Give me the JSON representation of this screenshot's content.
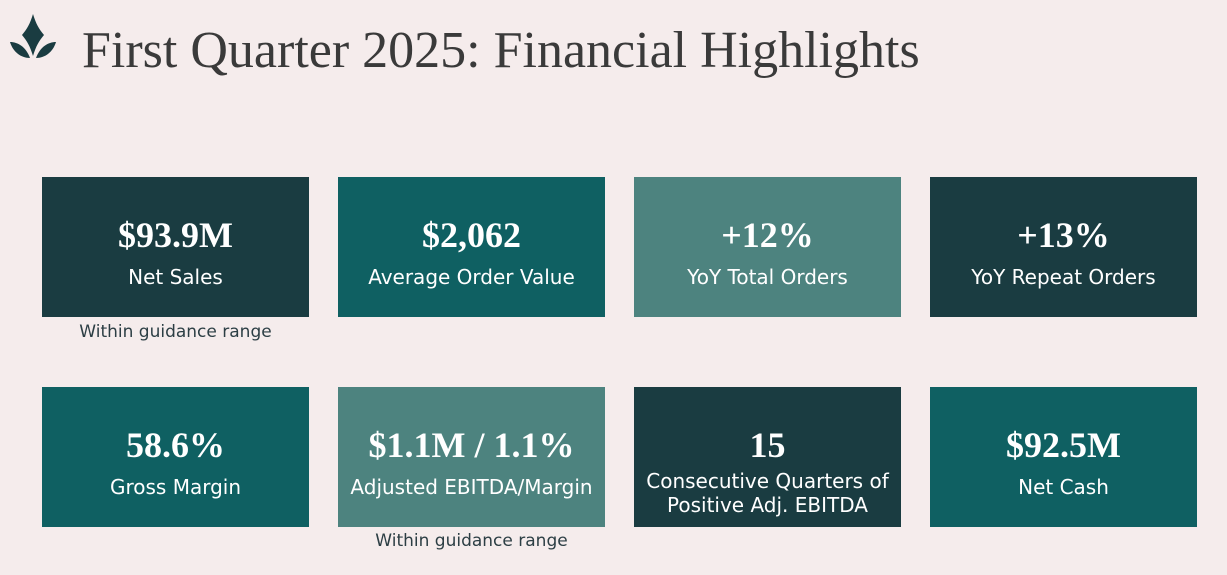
{
  "header": {
    "logo_icon": "lotus-flower-icon",
    "title": "First Quarter 2025: Financial Highlights"
  },
  "colors": {
    "background": "#f5ecec",
    "dark_teal": "#1a3c41",
    "teal": "#0f6062",
    "light_teal": "#4d837f"
  },
  "metrics": [
    {
      "value": "$93.9M",
      "label": "Net Sales",
      "note": "Within guidance range",
      "color": "#1a3c41"
    },
    {
      "value": "$2,062",
      "label": "Average Order Value",
      "color": "#0f6062"
    },
    {
      "value": "+12%",
      "label": "YoY Total Orders",
      "color": "#4d837f"
    },
    {
      "value": "+13%",
      "label": "YoY Repeat Orders",
      "color": "#1a3c41"
    },
    {
      "value": "58.6%",
      "label": "Gross Margin",
      "color": "#0f6062"
    },
    {
      "value": "$1.1M / 1.1%",
      "label": "Adjusted EBITDA/Margin",
      "note": "Within guidance range",
      "color": "#4d837f"
    },
    {
      "value": "15",
      "label": "Consecutive Quarters of Positive Adj. EBITDA",
      "color": "#1a3c41"
    },
    {
      "value": "$92.5M",
      "label": "Net Cash",
      "color": "#0f6062"
    }
  ]
}
